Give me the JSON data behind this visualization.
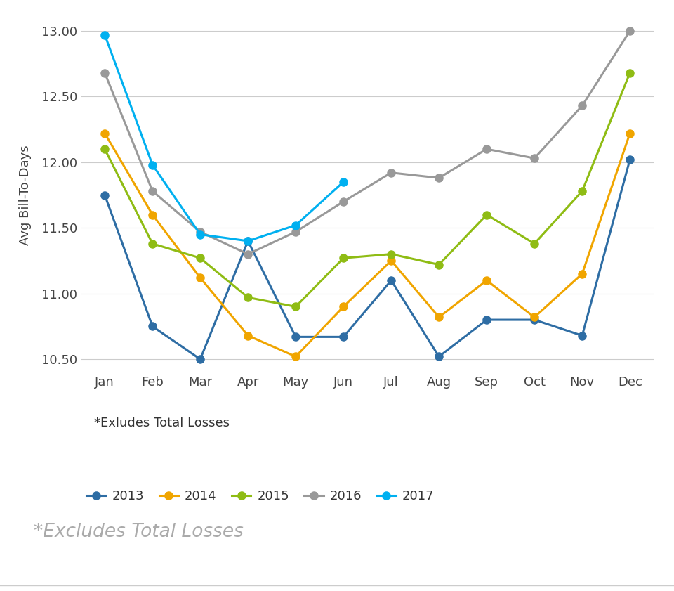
{
  "ylabel": "Avg Bill-To-Days",
  "months": [
    "Jan",
    "Feb",
    "Mar",
    "Apr",
    "May",
    "Jun",
    "Jul",
    "Aug",
    "Sep",
    "Oct",
    "Nov",
    "Dec"
  ],
  "series": {
    "2013": {
      "values": [
        11.75,
        10.75,
        10.5,
        11.4,
        10.67,
        10.67,
        11.1,
        10.52,
        10.8,
        10.8,
        10.68,
        12.02
      ],
      "color": "#2e6da4",
      "marker": "o"
    },
    "2014": {
      "values": [
        12.22,
        11.6,
        11.12,
        10.68,
        10.52,
        10.9,
        11.25,
        10.82,
        11.1,
        10.82,
        11.15,
        12.22
      ],
      "color": "#f0a500",
      "marker": "o"
    },
    "2015": {
      "values": [
        12.1,
        11.38,
        11.27,
        10.97,
        10.9,
        11.27,
        11.3,
        11.22,
        11.6,
        11.38,
        11.78,
        12.68
      ],
      "color": "#8fbc14",
      "marker": "o"
    },
    "2016": {
      "values": [
        12.68,
        11.78,
        11.47,
        11.3,
        11.47,
        11.7,
        11.92,
        11.88,
        12.1,
        12.03,
        12.43,
        13.0
      ],
      "color": "#999999",
      "marker": "o"
    },
    "2017": {
      "values": [
        12.97,
        11.98,
        11.45,
        11.4,
        11.52,
        11.85,
        null,
        null,
        null,
        null,
        null,
        null
      ],
      "color": "#00b0f0",
      "marker": "o"
    }
  },
  "ylim": [
    10.4,
    13.1
  ],
  "yticks": [
    10.5,
    11.0,
    11.5,
    12.0,
    12.5,
    13.0
  ],
  "legend_note": "*Exludes Total Losses",
  "footnote": "*Excludes Total Losses",
  "background_color": "#ffffff",
  "grid_color": "#cccccc"
}
